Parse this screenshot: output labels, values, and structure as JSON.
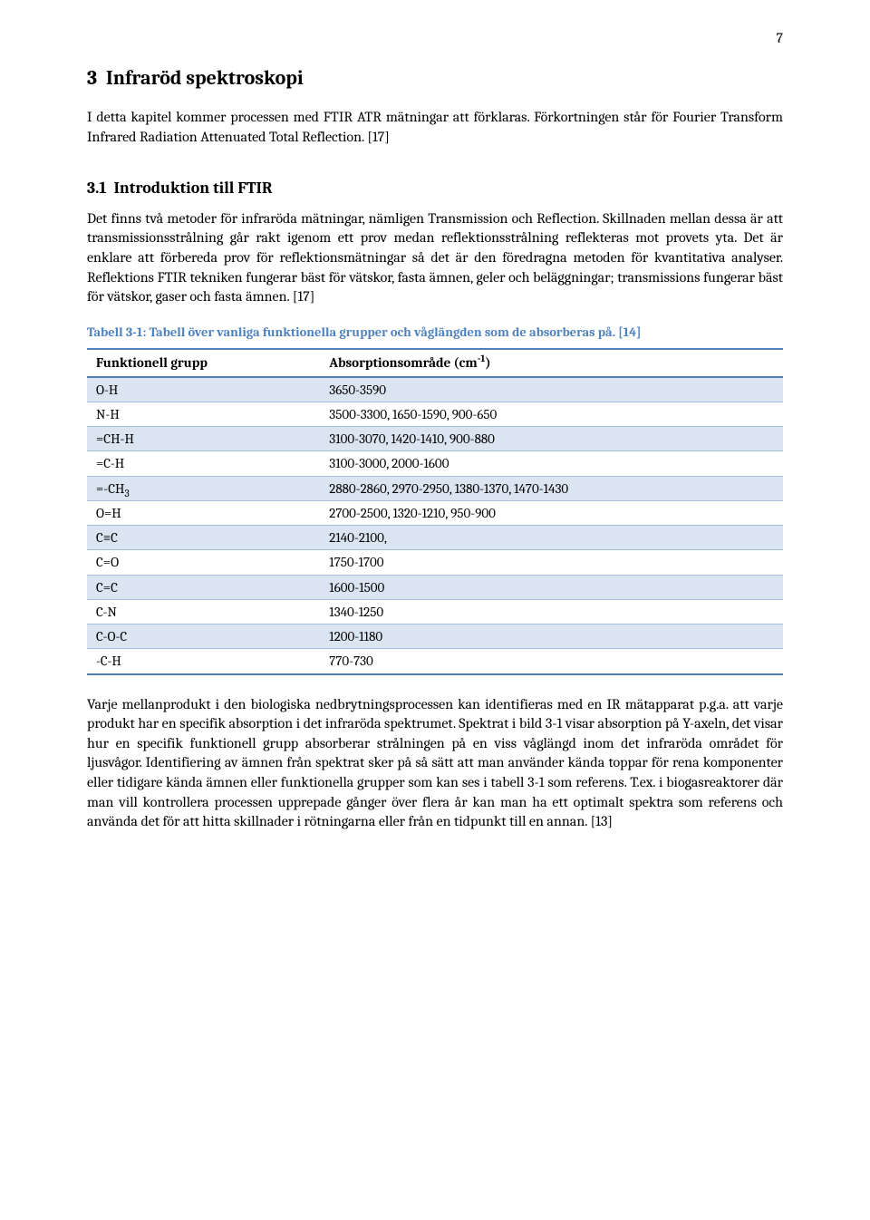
{
  "page_number": "7",
  "colors": {
    "accent": "#4f81bd",
    "band_bg": "#dbe5f1",
    "row_border": "#a7bfde",
    "text": "#000000",
    "background": "#ffffff"
  },
  "typography": {
    "body_font_family": "Cambria, Georgia, 'Times New Roman', serif",
    "body_size_pt": 12,
    "chapter_size_pt": 16,
    "section_size_pt": 13,
    "caption_size_pt": 11,
    "table_size_pt": 11
  },
  "chapter": {
    "number": "3",
    "title": "Infraröd spektroskopi",
    "intro": "I detta kapitel kommer processen med FTIR ATR mätningar att förklaras. Förkortningen står för Fourier Transform Infrared Radiation Attenuated Total Reflection. [17]"
  },
  "section": {
    "number": "3.1",
    "title": "Introduktion till FTIR",
    "para": "Det finns två metoder för infraröda mätningar, nämligen Transmission och Reflection. Skillnaden mellan dessa är att transmissionsstrålning går rakt igenom ett prov medan reflektionsstrålning reflekteras mot provets yta. Det är enklare att förbereda prov för reflektionsmätningar så det är den föredragna metoden för kvantitativa analyser. Reflektions FTIR tekniken fungerar bäst för vätskor, fasta ämnen, geler och beläggningar; transmissions fungerar bäst för vätskor, gaser och fasta ämnen. [17]"
  },
  "table": {
    "caption": "Tabell 3-1: Tabell över vanliga funktionella grupper och våglängden som de absorberas på. [14]",
    "headers": [
      "Funktionell grupp",
      "Absorptionsområde (cm-1)"
    ],
    "header_sup_col2": "-1",
    "header_col2_prefix": "Absorptionsområde (cm",
    "header_col2_suffix": ")",
    "rows": [
      {
        "group": "O-H",
        "range": "3650-3590",
        "band": true
      },
      {
        "group": "N-H",
        "range": "3500-3300, 1650-1590, 900-650",
        "band": false
      },
      {
        "group": "=CH-H",
        "range": "3100-3070, 1420-1410, 900-880",
        "band": true
      },
      {
        "group": "=C-H",
        "range": "3100-3000, 2000-1600",
        "band": false
      },
      {
        "group": "=-CH3",
        "sub": "3",
        "group_prefix": "=-CH",
        "range": "2880-2860, 2970-2950, 1380-1370, 1470-1430",
        "band": true
      },
      {
        "group": "O=H",
        "range": "2700-2500, 1320-1210, 950-900",
        "band": false
      },
      {
        "group": "C≡C",
        "range": "2140-2100,",
        "band": true
      },
      {
        "group": "C=O",
        "range": "1750-1700",
        "band": false
      },
      {
        "group": "C=C",
        "range": "1600-1500",
        "band": true
      },
      {
        "group": "C-N",
        "range": "1340-1250",
        "band": false
      },
      {
        "group": "C-O-C",
        "range": "1200-1180",
        "band": true
      },
      {
        "group": "-C-H",
        "range": "770-730",
        "band": false
      }
    ]
  },
  "closing_para": "Varje mellanprodukt i den biologiska nedbrytningsprocessen kan identifieras med en IR mätapparat p.g.a. att varje produkt har en specifik absorption i det infraröda spektrumet. Spektrat i bild 3-1 visar absorption på Y-axeln, det visar hur en specifik funktionell grupp absorberar strålningen på en viss våglängd inom det infraröda området för ljusvågor. Identifiering av ämnen från spektrat sker på så sätt att man använder kända toppar för rena komponenter eller tidigare kända ämnen eller funktionella grupper som kan ses i tabell 3-1 som referens. T.ex. i biogasreaktorer där man vill kontrollera processen upprepade gånger över flera år kan man ha ett optimalt spektra som referens och använda det för att hitta skillnader i rötningarna eller från en tidpunkt till en annan. [13]"
}
